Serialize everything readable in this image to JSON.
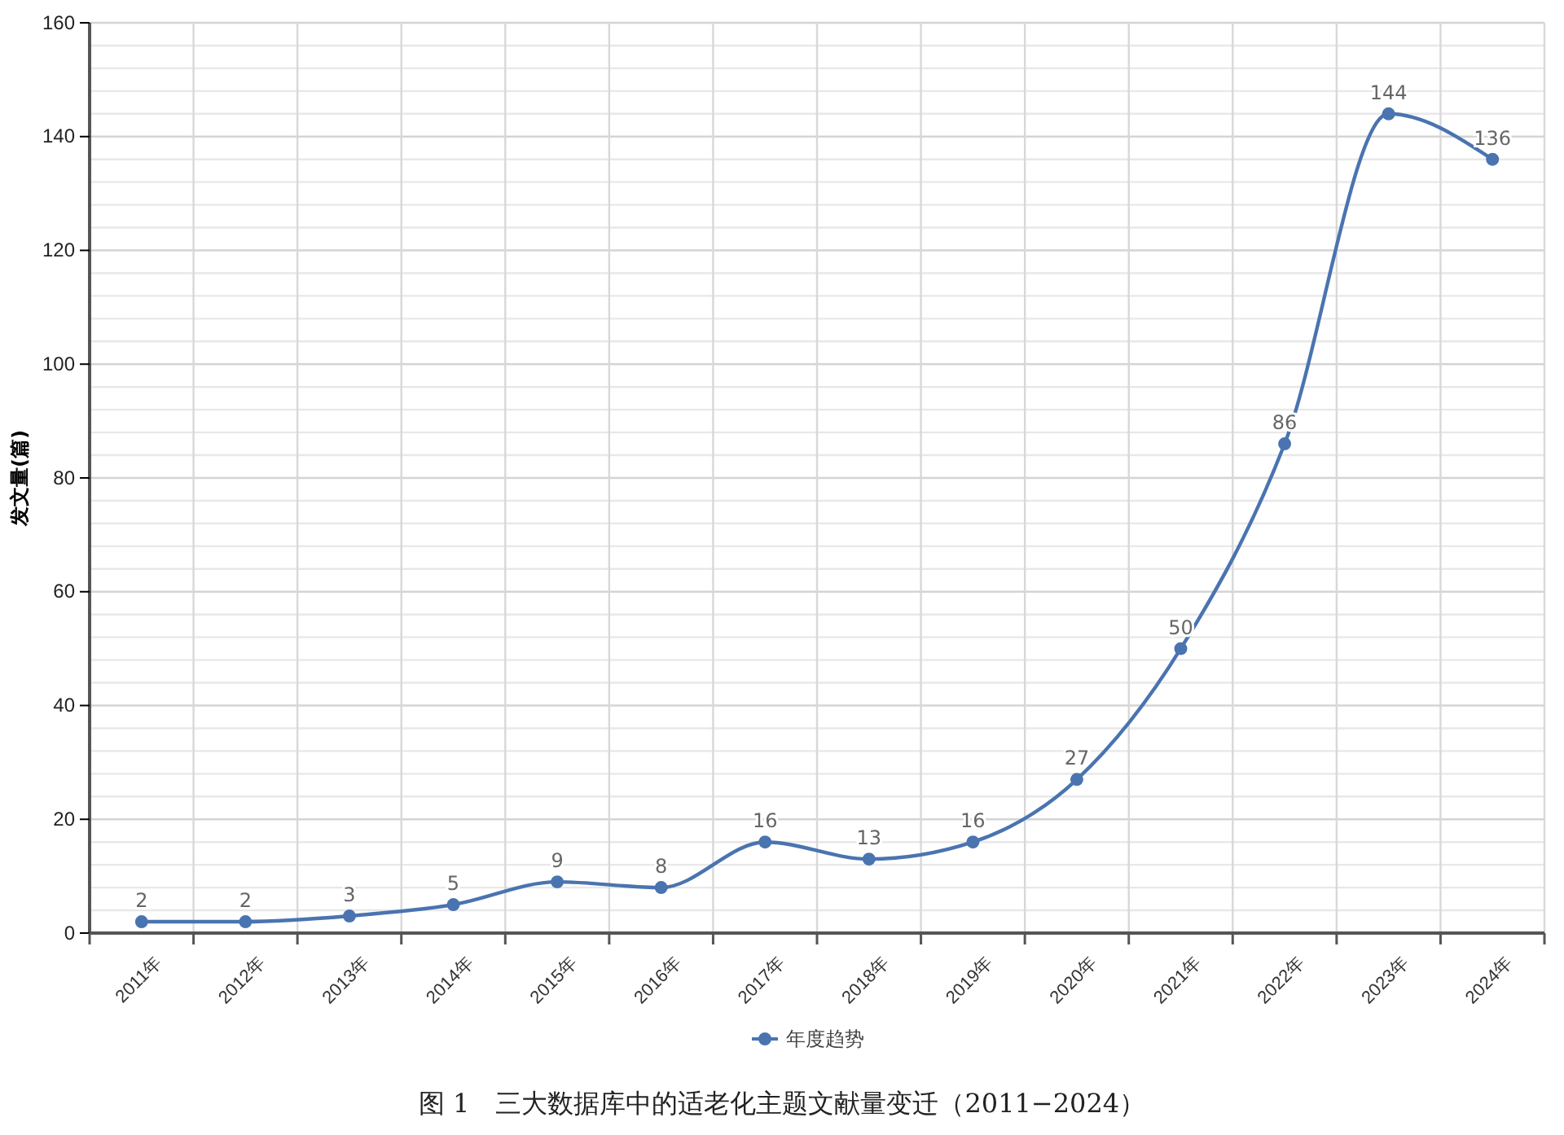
{
  "chart_data": {
    "type": "line",
    "ylabel": "发文量(篇)",
    "categories": [
      "2011年",
      "2012年",
      "2013年",
      "2014年",
      "2015年",
      "2016年",
      "2017年",
      "2018年",
      "2019年",
      "2020年",
      "2021年",
      "2022年",
      "2023年",
      "2024年"
    ],
    "series": [
      {
        "name": "年度趋势",
        "color": "#4a74b0",
        "values": [
          2,
          2,
          3,
          5,
          9,
          8,
          16,
          13,
          16,
          27,
          50,
          86,
          144,
          136
        ]
      }
    ],
    "ylim": [
      0,
      160
    ],
    "yticks": [
      0,
      {
        "value": 4,
        "label": null
      },
      {
        "value": 8,
        "label": null
      },
      {
        "value": 12,
        "label": null
      },
      {
        "value": 16,
        "label": null
      },
      20,
      {
        "value": 24,
        "label": null
      },
      {
        "value": 28,
        "label": null
      },
      {
        "value": 32,
        "label": null
      },
      {
        "value": 36,
        "label": null
      },
      40,
      {
        "value": 44,
        "label": null
      },
      {
        "value": 48,
        "label": null
      },
      {
        "value": 52,
        "label": null
      },
      {
        "value": 56,
        "label": null
      },
      60,
      {
        "value": 64,
        "label": null
      },
      {
        "value": 68,
        "label": null
      },
      {
        "value": 72,
        "label": null
      },
      {
        "value": 76,
        "label": null
      },
      80,
      {
        "value": 84,
        "label": null
      },
      {
        "value": 88,
        "label": null
      },
      {
        "value": 92,
        "label": null
      },
      {
        "value": 96,
        "label": null
      },
      100,
      {
        "value": 104,
        "label": null
      },
      {
        "value": 108,
        "label": null
      },
      {
        "value": 112,
        "label": null
      },
      {
        "value": 116,
        "label": null
      },
      120,
      {
        "value": 124,
        "label": null
      },
      {
        "value": 128,
        "label": null
      },
      {
        "value": 132,
        "label": null
      },
      {
        "value": 136,
        "label": null
      },
      140,
      {
        "value": 144,
        "label": null
      },
      {
        "value": 148,
        "label": null
      },
      {
        "value": 152,
        "label": null
      },
      {
        "value": 156,
        "label": null
      },
      160
    ],
    "grid": true,
    "legend": "bottom",
    "marker": "circle",
    "line_style": "solid",
    "data_labels": true,
    "annotations": [
      "图 1　三大数据库中的适老化主题文献量变迁（2011−2024）"
    ]
  }
}
